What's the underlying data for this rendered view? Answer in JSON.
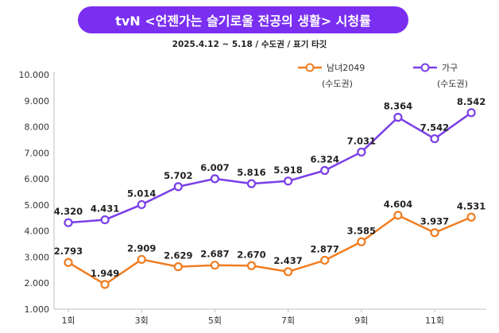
{
  "header": {
    "title": "tvN <언젠가는 슬기로울 전공의 생활> 시청률",
    "subtitle": "2025.4.12 ~ 5.18 / 수도권 / 표기 타깃"
  },
  "chart_data": {
    "type": "line",
    "x": [
      1,
      2,
      3,
      4,
      5,
      6,
      7,
      8,
      9,
      10,
      11,
      12
    ],
    "xticks": [
      "1회",
      "3회",
      "5회",
      "7회",
      "9회",
      "11회"
    ],
    "xtick_positions": [
      1,
      3,
      5,
      7,
      9,
      11
    ],
    "yticks": [
      "1.000",
      "2.000",
      "3.000",
      "4.000",
      "5.000",
      "6.000",
      "7.000",
      "8.000",
      "9.000",
      "10.000"
    ],
    "ylim": [
      1,
      10
    ],
    "grid": false,
    "legend_position": "top-right",
    "series": [
      {
        "name": "남녀2049",
        "region": "(수도권)",
        "color": "#ef7d22",
        "values": [
          2.793,
          1.949,
          2.909,
          2.629,
          2.687,
          2.67,
          2.437,
          2.877,
          3.585,
          4.604,
          3.937,
          4.531
        ],
        "labels": [
          "2.793",
          "1.949",
          "2.909",
          "2.629",
          "2.687",
          "2.670",
          "2.437",
          "2.877",
          "3.585",
          "4.604",
          "3.937",
          "4.531"
        ]
      },
      {
        "name": "가구",
        "region": "(수도권)",
        "color": "#7a3ee8",
        "values": [
          4.32,
          4.431,
          5.014,
          5.702,
          6.007,
          5.816,
          5.918,
          6.324,
          7.031,
          8.364,
          7.542,
          8.542
        ],
        "labels": [
          "4.320",
          "4.431",
          "5.014",
          "5.702",
          "6.007",
          "5.816",
          "5.918",
          "6.324",
          "7.031",
          "8.364",
          "7.542",
          "8.542"
        ]
      }
    ]
  }
}
